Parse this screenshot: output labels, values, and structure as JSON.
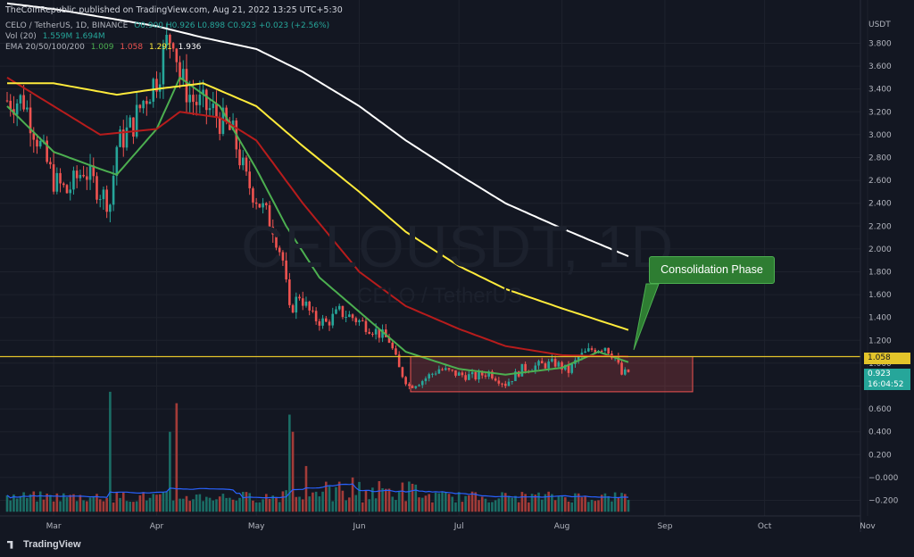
{
  "publish_line": "TheCoinRepublic published on TradingView.com, Aug 21, 2022 13:25 UTC+5:30",
  "symbol_row": {
    "symbol": "CELO / TetherUS, 1D, BINANCE",
    "ohlc": "O0.900 H0.926 L0.898 C0.923 +0.023 (+2.56%)"
  },
  "vol_row": {
    "label": "Vol (20)",
    "values": "1.559M 1.694M"
  },
  "ema_row": {
    "label": "EMA 20/50/100/200",
    "v20": "1.009",
    "v50": "1.058",
    "v100": "1.291",
    "v200": "1.936"
  },
  "watermark": {
    "main": "CELOUSDT, 1D",
    "sub": "CELO / TetherUS"
  },
  "annotation": "Consolidation Phase",
  "level_badge": "1.058",
  "price_badge": {
    "price": "0.923",
    "countdown": "16:04:52"
  },
  "logo_text": "TradingView",
  "currency": "USDT",
  "colors": {
    "background": "#131722",
    "up": "#26a69a",
    "down": "#ef5350",
    "ema20": "#4caf50",
    "ema50": "#b71c1c",
    "ema100": "#ffeb3b",
    "ema200": "#ffffff",
    "level": "#e3c42a",
    "vol_ma": "#2962ff",
    "box": "#ef5350"
  },
  "chart_data": {
    "type": "candlestick",
    "title": "CELO / TetherUS, 1D, BINANCE",
    "x_ticks": [
      "Mar",
      "Apr",
      "May",
      "Jun",
      "Jul",
      "Aug",
      "Sep",
      "Oct",
      "Nov"
    ],
    "y_ticks": [
      3.8,
      3.6,
      3.4,
      3.2,
      3.0,
      2.8,
      2.6,
      2.4,
      2.2,
      2.0,
      1.8,
      1.6,
      1.4,
      1.2,
      1.0,
      0.8,
      0.6,
      0.4,
      0.2,
      0.0,
      -0.2
    ],
    "y_tick_labels": [
      "3.800",
      "3.600",
      "3.400",
      "3.200",
      "3.000",
      "2.800",
      "2.600",
      "2.400",
      "2.200",
      "2.000",
      "1.800",
      "1.600",
      "1.400",
      "1.200",
      "1.000",
      "0.800",
      "0.600",
      "0.400",
      "0.200",
      "−0.000",
      "−0.200"
    ],
    "ylim": [
      -0.3,
      4.0
    ],
    "horizontal_level": 1.058,
    "consolidation_box": {
      "from": "Jun 10",
      "to": "Aug 31",
      "low": 0.75,
      "high": 1.058
    },
    "price_path": [
      [
        "Feb 15",
        3.3
      ],
      [
        "Feb 20",
        3.3
      ],
      [
        "Feb 25",
        2.9
      ],
      [
        "Mar 1",
        2.6
      ],
      [
        "Mar 5",
        2.5
      ],
      [
        "Mar 10",
        2.7
      ],
      [
        "Mar 15",
        2.5
      ],
      [
        "Mar 18",
        2.4
      ],
      [
        "Mar 20",
        2.9
      ],
      [
        "Mar 25",
        3.1
      ],
      [
        "Mar 28",
        3.3
      ],
      [
        "Apr 1",
        3.5
      ],
      [
        "Apr 4",
        3.8
      ],
      [
        "Apr 6",
        3.9
      ],
      [
        "Apr 8",
        3.5
      ],
      [
        "Apr 12",
        3.3
      ],
      [
        "Apr 18",
        3.2
      ],
      [
        "Apr 24",
        3.0
      ],
      [
        "Apr 28",
        2.6
      ],
      [
        "May 2",
        2.4
      ],
      [
        "May 6",
        2.2
      ],
      [
        "May 9",
        1.9
      ],
      [
        "May 11",
        1.45
      ],
      [
        "May 14",
        1.6
      ],
      [
        "May 18",
        1.4
      ],
      [
        "May 22",
        1.35
      ],
      [
        "May 26",
        1.45
      ],
      [
        "May 30",
        1.4
      ],
      [
        "Jun 5",
        1.3
      ],
      [
        "Jun 10",
        1.2
      ],
      [
        "Jun 13",
        0.95
      ],
      [
        "Jun 16",
        0.8
      ],
      [
        "Jun 20",
        0.85
      ],
      [
        "Jun 25",
        0.95
      ],
      [
        "Jul 1",
        0.9
      ],
      [
        "Jul 6",
        0.88
      ],
      [
        "Jul 10",
        0.92
      ],
      [
        "Jul 15",
        0.82
      ],
      [
        "Jul 20",
        0.95
      ],
      [
        "Jul 25",
        0.98
      ],
      [
        "Jul 30",
        1.0
      ],
      [
        "Aug 3",
        0.93
      ],
      [
        "Aug 6",
        1.05
      ],
      [
        "Aug 10",
        1.12
      ],
      [
        "Aug 14",
        1.15
      ],
      [
        "Aug 17",
        1.05
      ],
      [
        "Aug 19",
        0.9
      ],
      [
        "Aug 21",
        0.923
      ]
    ],
    "series": [
      {
        "name": "EMA 20",
        "color": "#4caf50",
        "points": [
          [
            "Feb 15",
            3.25
          ],
          [
            "Mar 1",
            2.85
          ],
          [
            "Mar 15",
            2.7
          ],
          [
            "Mar 20",
            2.65
          ],
          [
            "Apr 1",
            3.05
          ],
          [
            "Apr 8",
            3.5
          ],
          [
            "Apr 20",
            3.25
          ],
          [
            "May 1",
            2.7
          ],
          [
            "May 10",
            2.2
          ],
          [
            "May 20",
            1.75
          ],
          [
            "Jun 1",
            1.45
          ],
          [
            "Jun 15",
            1.1
          ],
          [
            "Jul 1",
            0.95
          ],
          [
            "Jul 15",
            0.9
          ],
          [
            "Aug 1",
            0.96
          ],
          [
            "Aug 12",
            1.1
          ],
          [
            "Aug 21",
            1.009
          ]
        ]
      },
      {
        "name": "EMA 50",
        "color": "#b71c1c",
        "points": [
          [
            "Feb 15",
            3.5
          ],
          [
            "Mar 1",
            3.25
          ],
          [
            "Mar 15",
            3.0
          ],
          [
            "Apr 1",
            3.05
          ],
          [
            "Apr 8",
            3.2
          ],
          [
            "Apr 20",
            3.15
          ],
          [
            "May 1",
            2.95
          ],
          [
            "May 15",
            2.4
          ],
          [
            "Jun 1",
            1.8
          ],
          [
            "Jun 15",
            1.5
          ],
          [
            "Jul 1",
            1.3
          ],
          [
            "Jul 15",
            1.15
          ],
          [
            "Aug 1",
            1.07
          ],
          [
            "Aug 21",
            1.058
          ]
        ]
      },
      {
        "name": "EMA 100",
        "color": "#ffeb3b",
        "points": [
          [
            "Feb 15",
            3.45
          ],
          [
            "Mar 1",
            3.45
          ],
          [
            "Mar 20",
            3.35
          ],
          [
            "Apr 1",
            3.4
          ],
          [
            "Apr 15",
            3.45
          ],
          [
            "May 1",
            3.25
          ],
          [
            "May 15",
            2.9
          ],
          [
            "Jun 1",
            2.5
          ],
          [
            "Jun 15",
            2.15
          ],
          [
            "Jul 1",
            1.85
          ],
          [
            "Jul 15",
            1.65
          ],
          [
            "Aug 1",
            1.48
          ],
          [
            "Aug 21",
            1.291
          ]
        ]
      },
      {
        "name": "EMA 200",
        "color": "#ffffff",
        "points": [
          [
            "Feb 15",
            4.15
          ],
          [
            "Mar 1",
            4.1
          ],
          [
            "Apr 1",
            3.95
          ],
          [
            "Apr 15",
            3.85
          ],
          [
            "May 1",
            3.75
          ],
          [
            "May 15",
            3.55
          ],
          [
            "Jun 1",
            3.25
          ],
          [
            "Jun 15",
            2.95
          ],
          [
            "Jul 1",
            2.65
          ],
          [
            "Jul 15",
            2.4
          ],
          [
            "Aug 1",
            2.18
          ],
          [
            "Aug 21",
            1.936
          ]
        ]
      }
    ],
    "volume_spikes": [
      [
        "Mar 18",
        0.75
      ],
      [
        "Apr 5",
        0.4
      ],
      [
        "Apr 7",
        0.65
      ],
      [
        "May 11",
        0.55
      ],
      [
        "May 12",
        0.4
      ],
      [
        "May 16",
        0.1
      ],
      [
        "May 30",
        0.0
      ]
    ]
  }
}
